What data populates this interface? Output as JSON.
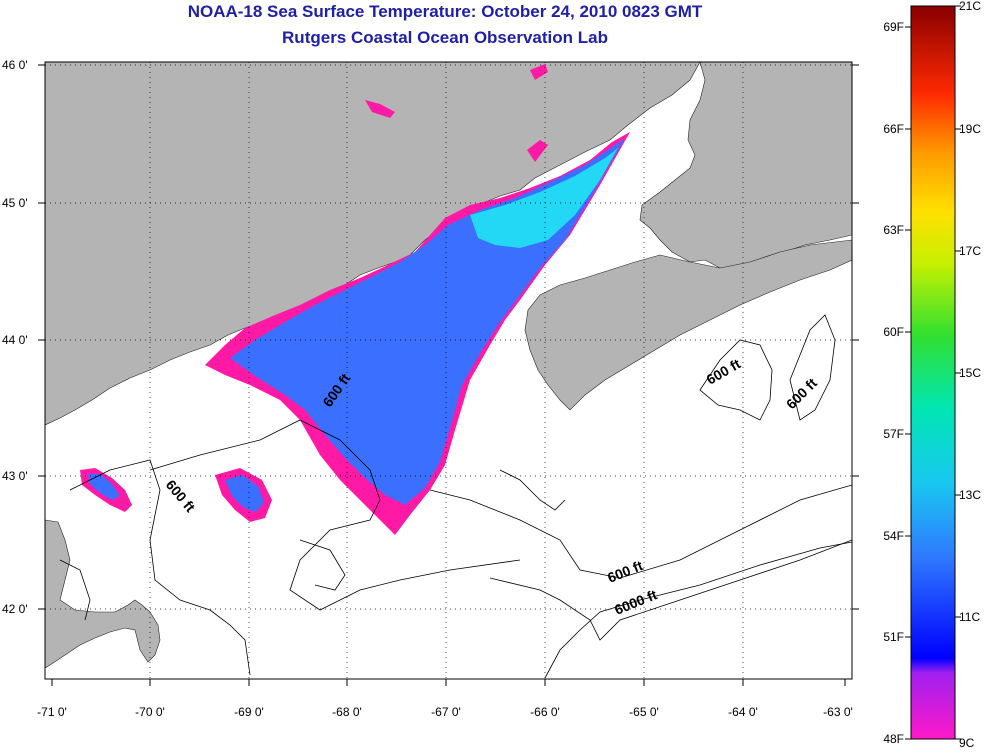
{
  "title": "NOAA-18 Sea Surface Temperature:  October 24, 2010 0823 GMT",
  "subtitle": "Rutgers Coastal Ocean Observation Lab",
  "axes": {
    "lon_ticks": [
      "-71 0'",
      "-70 0'",
      "-69 0'",
      "-68 0'",
      "-67 0'",
      "-66 0'",
      "-65 0'",
      "-64 0'",
      "-63 0'"
    ],
    "lat_ticks": [
      "46 0'",
      "45 0'",
      "44 0'",
      "43 0'",
      "42 0'"
    ]
  },
  "colorbar": {
    "fahrenheit": [
      "69F",
      "66F",
      "63F",
      "60F",
      "57F",
      "54F",
      "51F",
      "48F"
    ],
    "celsius": [
      "21C",
      "19C",
      "17C",
      "15C",
      "13C",
      "11C",
      "9C"
    ]
  },
  "contours": [
    "600 ft",
    "600 ft",
    "600 ft",
    "600 ft",
    "600 ft",
    "6000 ft"
  ],
  "colors": {
    "title": "#1f1fa8",
    "land": "#b4b4b4",
    "ocean": "#ffffff",
    "cold_magenta": "#ff1aa6",
    "sst_blue": "#3a6fff",
    "sst_cyan": "#22d8f5"
  }
}
